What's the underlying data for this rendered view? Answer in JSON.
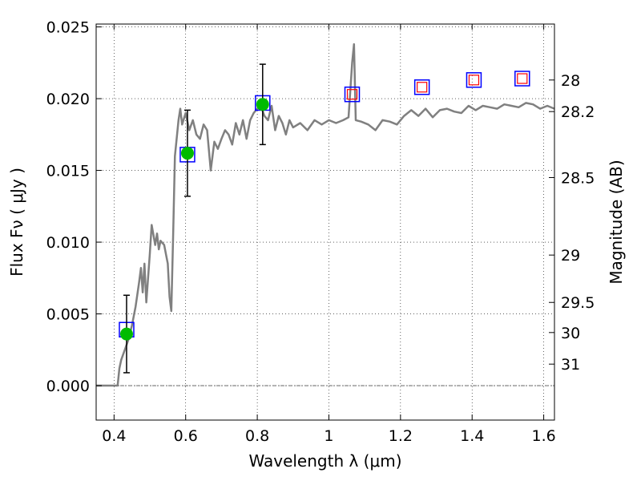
{
  "chart_data": {
    "type": "line",
    "title": "",
    "xlabel": "Wavelength  λ (μm)",
    "ylabel": "Flux  Fν  ( μJy )",
    "ylabel_right": "Magnitude (AB)",
    "xlim": [
      0.35,
      1.63
    ],
    "ylim": [
      -0.0024,
      0.0252
    ],
    "grid": true,
    "x_ticks": [
      {
        "v": 0.4,
        "label": "0.4"
      },
      {
        "v": 0.6,
        "label": "0.6"
      },
      {
        "v": 0.8,
        "label": "0.8"
      },
      {
        "v": 1.0,
        "label": "1"
      },
      {
        "v": 1.2,
        "label": "1.2"
      },
      {
        "v": 1.4,
        "label": "1.4"
      },
      {
        "v": 1.6,
        "label": "1.6"
      }
    ],
    "y_ticks": [
      {
        "v": 0.0,
        "label": "0.000"
      },
      {
        "v": 0.005,
        "label": "0.005"
      },
      {
        "v": 0.01,
        "label": "0.010"
      },
      {
        "v": 0.015,
        "label": "0.015"
      },
      {
        "v": 0.02,
        "label": "0.020"
      },
      {
        "v": 0.025,
        "label": "0.025"
      }
    ],
    "magnitude_ticks": [
      {
        "flux": 0.0213,
        "label": "28"
      },
      {
        "flux": 0.0191,
        "label": "28.2"
      },
      {
        "flux": 0.0145,
        "label": "28.5"
      },
      {
        "flux": 0.0091,
        "label": "29"
      },
      {
        "flux": 0.0058,
        "label": "29.5"
      },
      {
        "flux": 0.0037,
        "label": "30"
      },
      {
        "flux": 0.0015,
        "label": "31"
      }
    ],
    "series": [
      {
        "style": "line",
        "color": "#808080",
        "x": [
          0.35,
          0.41,
          0.415,
          0.42,
          0.43,
          0.44,
          0.45,
          0.46,
          0.47,
          0.475,
          0.48,
          0.485,
          0.49,
          0.5,
          0.505,
          0.51,
          0.515,
          0.52,
          0.525,
          0.53,
          0.54,
          0.55,
          0.555,
          0.56,
          0.565,
          0.57,
          0.58,
          0.585,
          0.59,
          0.6,
          0.61,
          0.62,
          0.63,
          0.64,
          0.65,
          0.66,
          0.67,
          0.68,
          0.69,
          0.7,
          0.71,
          0.72,
          0.73,
          0.74,
          0.75,
          0.76,
          0.77,
          0.78,
          0.79,
          0.8,
          0.81,
          0.82,
          0.83,
          0.84,
          0.85,
          0.86,
          0.87,
          0.88,
          0.89,
          0.9,
          0.92,
          0.94,
          0.96,
          0.98,
          1.0,
          1.02,
          1.04,
          1.055,
          1.065,
          1.07,
          1.075,
          1.09,
          1.11,
          1.13,
          1.15,
          1.17,
          1.19,
          1.21,
          1.23,
          1.25,
          1.27,
          1.29,
          1.31,
          1.33,
          1.35,
          1.37,
          1.39,
          1.41,
          1.43,
          1.45,
          1.47,
          1.49,
          1.51,
          1.53,
          1.55,
          1.57,
          1.59,
          1.61,
          1.63
        ],
        "y": [
          0.0,
          0.0,
          0.0012,
          0.0018,
          0.0025,
          0.0032,
          0.0042,
          0.0055,
          0.0072,
          0.0082,
          0.0065,
          0.0085,
          0.0058,
          0.0092,
          0.0112,
          0.0105,
          0.0098,
          0.0106,
          0.0095,
          0.0101,
          0.0098,
          0.0085,
          0.0062,
          0.0052,
          0.0105,
          0.016,
          0.0185,
          0.0193,
          0.0182,
          0.019,
          0.0178,
          0.0185,
          0.0175,
          0.0172,
          0.0182,
          0.0178,
          0.015,
          0.017,
          0.0165,
          0.0172,
          0.0178,
          0.0175,
          0.0168,
          0.0183,
          0.0175,
          0.0185,
          0.0172,
          0.0185,
          0.019,
          0.0193,
          0.0195,
          0.0188,
          0.0185,
          0.0195,
          0.0178,
          0.0188,
          0.0183,
          0.0175,
          0.0185,
          0.018,
          0.0183,
          0.0178,
          0.0185,
          0.0182,
          0.0185,
          0.0183,
          0.0185,
          0.0187,
          0.0225,
          0.0238,
          0.0185,
          0.0184,
          0.0182,
          0.0178,
          0.0185,
          0.0184,
          0.0182,
          0.0188,
          0.0192,
          0.0188,
          0.0193,
          0.0187,
          0.0192,
          0.0193,
          0.0191,
          0.019,
          0.0195,
          0.0192,
          0.0195,
          0.0194,
          0.0193,
          0.0196,
          0.0195,
          0.0194,
          0.0197,
          0.0196,
          0.0193,
          0.0195,
          0.0193
        ]
      },
      {
        "style": "square",
        "color": "#0000ff",
        "x": [
          0.435,
          0.605,
          0.815,
          1.065,
          1.26,
          1.405,
          1.54
        ],
        "y": [
          0.0039,
          0.0161,
          0.0197,
          0.0203,
          0.0208,
          0.0213,
          0.0214
        ]
      },
      {
        "style": "circle",
        "color": "#00bb00",
        "x": [
          0.435,
          0.605,
          0.815
        ],
        "y": [
          0.0036,
          0.0162,
          0.0196
        ],
        "err": [
          0.0027,
          0.003,
          0.0028
        ]
      },
      {
        "style": "small-square",
        "color": "#ff0000",
        "x": [
          1.065,
          1.26,
          1.405,
          1.54
        ],
        "y": [
          0.0203,
          0.0208,
          0.0213,
          0.0214
        ]
      }
    ]
  }
}
